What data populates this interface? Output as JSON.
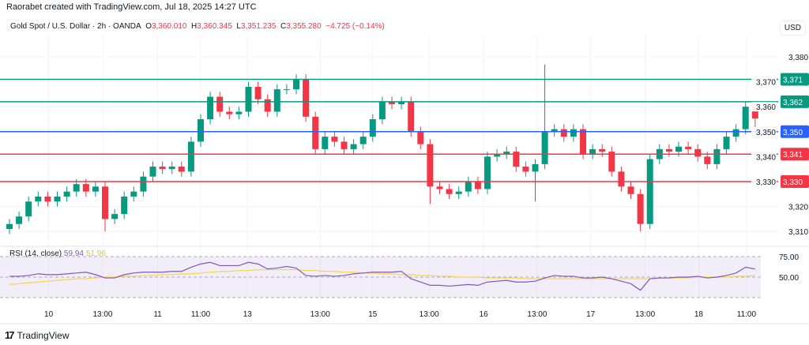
{
  "header": {
    "credit": "Raorabet created with TradingView.com, Jul 18, 2025 14:27 UTC",
    "symbol": "Gold Spot / U.S. Dollar · 2h · OANDA",
    "o_label": "O",
    "o": "3,360.010",
    "h_label": "H",
    "h": "3,360.345",
    "l_label": "L",
    "l": "3,351.235",
    "c_label": "C",
    "c": "3,355.280",
    "change": "−4.725 (−0.14%)",
    "currency": "USD"
  },
  "rsi_legend": {
    "label": "RSI (14, close)",
    "rsi": "59.94",
    "ma": "51.96"
  },
  "footer": {
    "logo_mark": "17",
    "brand": "TradingView"
  },
  "colors": {
    "up": "#089981",
    "down": "#f23645",
    "blue": "#2962ff",
    "rsi": "#7e57c2",
    "ma": "#f7d44a"
  },
  "chart_data": {
    "type": "candlestick",
    "title": "Gold Spot / U.S. Dollar · 2h · OANDA",
    "ylabel": "USD",
    "ylim": [
      3303,
      3387
    ],
    "yticks": [
      3310,
      3320,
      3330,
      3340,
      3350,
      3360,
      3370,
      3380
    ],
    "ytick_labels": [
      "3,310",
      "3,320",
      "3,330",
      "3,340",
      "3,350",
      "3,360",
      "3,370",
      "3,380"
    ],
    "first_open": 3311,
    "close": [
      3313,
      3316,
      3322,
      3324,
      3322,
      3324,
      3326,
      3329,
      3326,
      3328,
      3315,
      3317,
      3324,
      3326,
      3332,
      3336,
      3335,
      3336,
      3334,
      3346,
      3355,
      3364,
      3358,
      3357,
      3358,
      3368,
      3363,
      3358,
      3367,
      3367,
      3371,
      3356,
      3343,
      3348,
      3346,
      3343,
      3345,
      3348,
      3355,
      3362,
      3361,
      3362,
      3350,
      3345,
      3328,
      3327,
      3325,
      3326,
      3330,
      3327,
      3340,
      3341,
      3342,
      3336,
      3334,
      3337,
      3350,
      3351,
      3348,
      3351,
      3341,
      3343,
      3342,
      3334,
      3328,
      3325,
      3313,
      3339,
      3343,
      3342,
      3344,
      3343,
      3340,
      3337,
      3343,
      3348,
      3351,
      3360,
      3355.28
    ],
    "wick_pad": 2,
    "high_overrides": {
      "30": 3373,
      "56": 3377,
      "78": 3360.345
    },
    "low_overrides": {
      "10": 3310,
      "44": 3321,
      "55": 3322,
      "66": 3310,
      "78": 3351.235
    },
    "levels": [
      {
        "value": 3371,
        "label": "3,371",
        "color": "#089981"
      },
      {
        "value": 3362,
        "label": "3,362",
        "color": "#089981"
      },
      {
        "value": 3350,
        "label": "3,350",
        "color": "#2962ff"
      },
      {
        "value": 3341,
        "label": "3,341",
        "color": "#f23645"
      },
      {
        "value": 3330,
        "label": "3,330",
        "color": "#f23645"
      }
    ],
    "xticks": [
      {
        "index": 4.1,
        "label": "10"
      },
      {
        "index": 9.75,
        "label": "13:00"
      },
      {
        "index": 15.5,
        "label": "11"
      },
      {
        "index": 20,
        "label": "11:00"
      },
      {
        "index": 24.9,
        "label": "13"
      },
      {
        "index": 32.5,
        "label": "13:00"
      },
      {
        "index": 38,
        "label": "15"
      },
      {
        "index": 43.9,
        "label": "13:00"
      },
      {
        "index": 49.6,
        "label": "16"
      },
      {
        "index": 55.2,
        "label": "13:00"
      },
      {
        "index": 60.8,
        "label": "17"
      },
      {
        "index": 66.5,
        "label": "13:00"
      },
      {
        "index": 72.1,
        "label": "18"
      },
      {
        "index": 77.1,
        "label": "11:00"
      }
    ],
    "rsi": {
      "ylim": [
        25,
        75
      ],
      "bands": [
        75,
        50,
        25
      ],
      "ytick_labels": [
        {
          "value": 75,
          "label": "75.00"
        },
        {
          "value": 50,
          "label": "50.00"
        }
      ],
      "rsi": [
        51,
        51,
        52,
        54,
        53,
        53,
        54,
        55,
        56,
        53,
        49,
        49,
        53,
        55,
        56,
        56,
        56,
        57,
        57,
        62,
        66,
        68,
        64,
        64,
        64,
        68,
        66,
        60,
        61,
        63,
        61,
        52,
        51,
        52,
        51,
        52,
        54,
        55,
        56,
        56,
        56,
        57,
        48,
        44,
        40,
        40,
        39,
        40,
        41,
        40,
        44,
        45,
        46,
        44,
        44,
        45,
        49,
        52,
        51,
        51,
        49,
        49,
        50,
        48,
        45,
        42,
        34,
        48,
        49,
        49,
        50,
        50,
        51,
        49,
        50,
        52,
        55,
        62,
        59.94
      ],
      "ma": [
        41,
        42,
        43,
        44,
        45,
        46,
        47,
        48,
        48,
        49,
        50,
        50,
        51,
        51,
        52,
        52,
        53,
        53,
        54,
        54,
        55,
        56,
        57,
        57,
        58,
        58,
        59,
        59,
        59,
        59,
        59,
        58,
        58,
        57,
        57,
        56,
        56,
        55,
        55,
        54,
        54,
        53,
        53,
        52,
        52,
        51,
        51,
        50,
        50,
        50,
        49,
        49,
        49,
        49,
        48,
        48,
        48,
        48,
        48,
        48,
        48,
        48,
        48,
        48,
        48,
        48,
        48,
        48,
        49,
        49,
        49,
        49,
        50,
        50,
        50,
        50,
        51,
        51,
        51.96
      ]
    }
  }
}
